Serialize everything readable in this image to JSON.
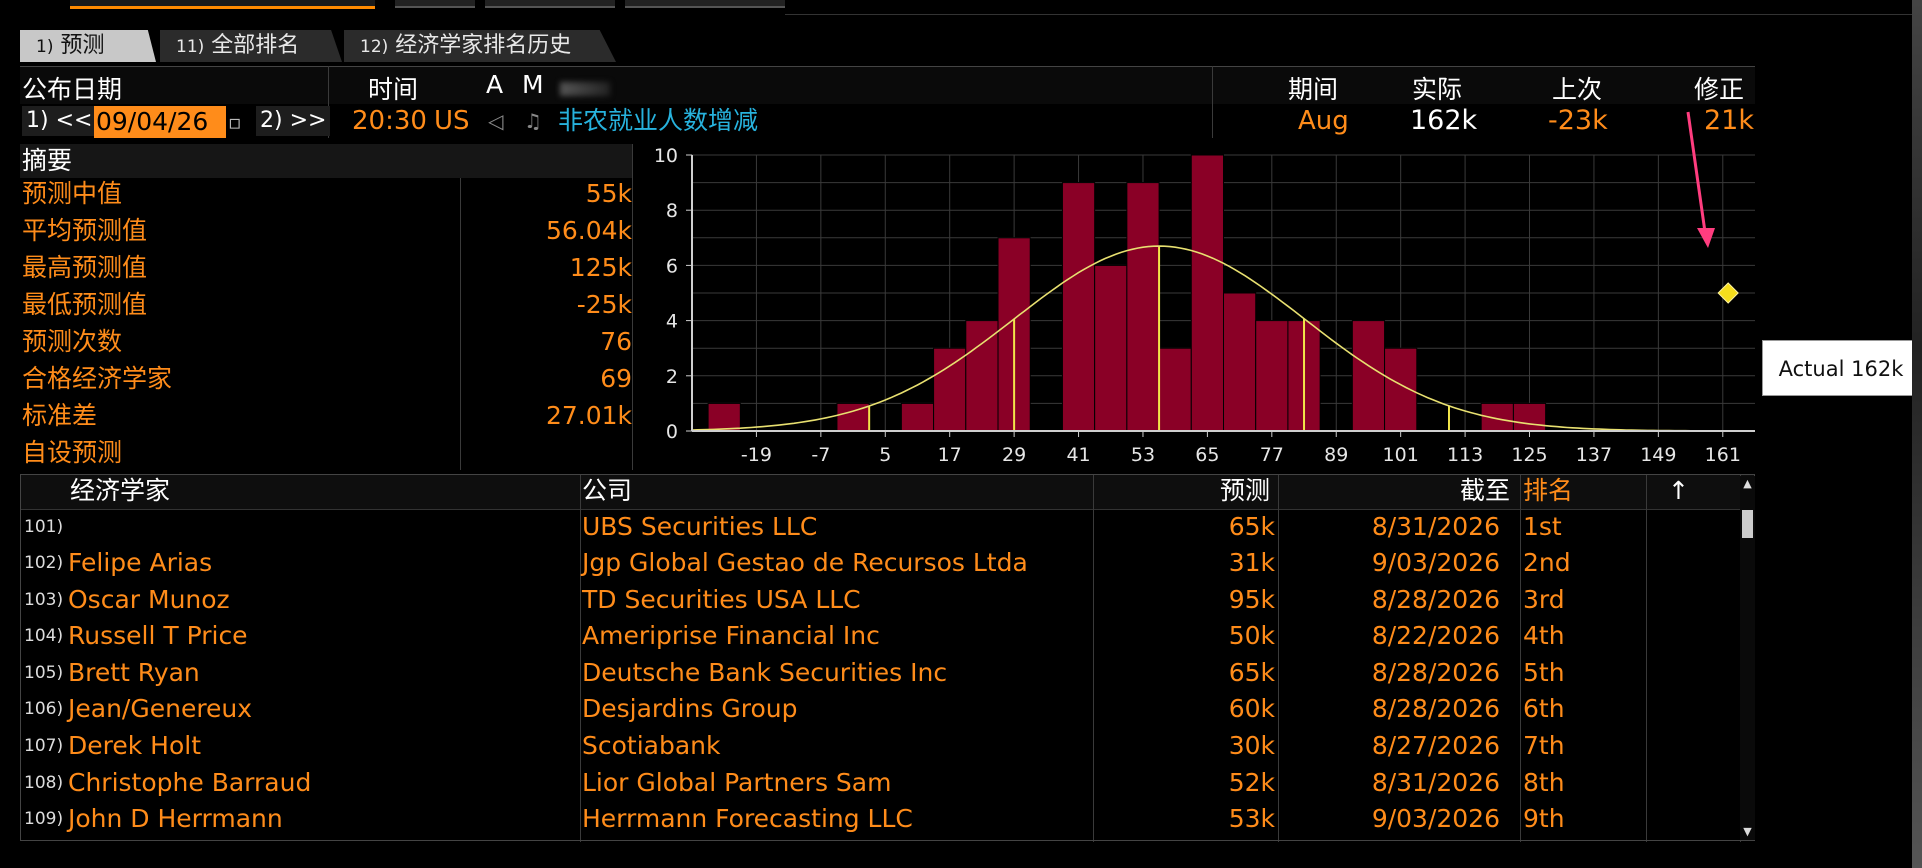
{
  "tabs": [
    {
      "num": "1)",
      "label": "预测",
      "active": true
    },
    {
      "num": "11)",
      "label": "全部排名",
      "active": false
    },
    {
      "num": "12)",
      "label": "经济学家排名历史",
      "active": false
    }
  ],
  "header": {
    "release_date_label": "公布日期",
    "time_label": "时间",
    "a_label": "A",
    "m_label": "M",
    "period_label": "期间",
    "actual_label": "实际",
    "prior_label": "上次",
    "revised_label": "修正"
  },
  "event": {
    "prev_btn": "1) <<",
    "date": "09/04/26",
    "next_btn": "2) >>",
    "time": "20:30",
    "country": "US",
    "title": "非农就业人数增减",
    "period": "Aug",
    "actual": "162k",
    "prior": "-23k",
    "revised": "21k"
  },
  "summary": {
    "title": "摘要",
    "rows": [
      {
        "label": "预测中值",
        "value": "55k"
      },
      {
        "label": "平均预测值",
        "value": "56.04k"
      },
      {
        "label": "最高预测值",
        "value": "125k"
      },
      {
        "label": "最低预测值",
        "value": "-25k"
      },
      {
        "label": "预测次数",
        "value": "76"
      },
      {
        "label": "合格经济学家",
        "value": "69"
      },
      {
        "label": "标准差",
        "value": "27.01k"
      },
      {
        "label": "自设预测",
        "value": ""
      }
    ]
  },
  "chart_data": {
    "type": "bar",
    "x_ticks": [
      "-19",
      "-7",
      "5",
      "17",
      "29",
      "41",
      "53",
      "65",
      "77",
      "89",
      "101",
      "113",
      "125",
      "137",
      "149",
      "161"
    ],
    "y_ticks": [
      "0",
      "2",
      "4",
      "6",
      "8",
      "10"
    ],
    "ylim": [
      0,
      10
    ],
    "xlim": [
      -31,
      167
    ],
    "bin_width": 6,
    "bins": [
      {
        "x": -25,
        "count": 1
      },
      {
        "x": -1,
        "count": 1
      },
      {
        "x": 11,
        "count": 1
      },
      {
        "x": 17,
        "count": 3
      },
      {
        "x": 23,
        "count": 4
      },
      {
        "x": 29,
        "count": 7
      },
      {
        "x": 41,
        "count": 9
      },
      {
        "x": 47,
        "count": 6
      },
      {
        "x": 53,
        "count": 9
      },
      {
        "x": 59,
        "count": 3
      },
      {
        "x": 65,
        "count": 10
      },
      {
        "x": 71,
        "count": 5
      },
      {
        "x": 77,
        "count": 4
      },
      {
        "x": 83,
        "count": 4
      },
      {
        "x": 95,
        "count": 4
      },
      {
        "x": 101,
        "count": 3
      },
      {
        "x": 119,
        "count": 1
      },
      {
        "x": 125,
        "count": 1
      }
    ],
    "normal_curve": {
      "mean": 56.04,
      "std": 27.01,
      "peak": 6.7
    },
    "markers": [
      2,
      29,
      56,
      83,
      110
    ],
    "actual_point": {
      "x": 162,
      "y": 5
    },
    "tooltip": "Actual 162k",
    "grid": true
  },
  "table": {
    "headers": {
      "economist": "经济学家",
      "company": "公司",
      "forecast": "预测",
      "as_of": "截至",
      "rank": "排名",
      "sort_arrow": "↑"
    },
    "rows": [
      {
        "idx": "101)",
        "name": "",
        "company": "UBS Securities LLC",
        "forecast": "65k",
        "date": "8/31/2026",
        "rank": "1st"
      },
      {
        "idx": "102)",
        "name": "Felipe Arias",
        "company": "Jgp Global Gestao de Recursos Ltda",
        "forecast": "31k",
        "date": "9/03/2026",
        "rank": "2nd"
      },
      {
        "idx": "103)",
        "name": "Oscar Munoz",
        "company": "TD Securities USA LLC",
        "forecast": "95k",
        "date": "8/28/2026",
        "rank": "3rd"
      },
      {
        "idx": "104)",
        "name": "Russell T Price",
        "company": "Ameriprise Financial Inc",
        "forecast": "50k",
        "date": "8/22/2026",
        "rank": "4th"
      },
      {
        "idx": "105)",
        "name": "Brett Ryan",
        "company": "Deutsche Bank Securities Inc",
        "forecast": "65k",
        "date": "8/28/2026",
        "rank": "5th"
      },
      {
        "idx": "106)",
        "name": "Jean/Genereux",
        "company": "Desjardins Group",
        "forecast": "60k",
        "date": "8/28/2026",
        "rank": "6th"
      },
      {
        "idx": "107)",
        "name": "Derek Holt",
        "company": "Scotiabank",
        "forecast": "30k",
        "date": "8/27/2026",
        "rank": "7th"
      },
      {
        "idx": "108)",
        "name": "Christophe Barraud",
        "company": "Lior Global Partners Sam",
        "forecast": "52k",
        "date": "8/31/2026",
        "rank": "8th"
      },
      {
        "idx": "109)",
        "name": "John D Herrmann",
        "company": "Herrmann Forecasting LLC",
        "forecast": "53k",
        "date": "9/03/2026",
        "rank": "9th"
      }
    ]
  },
  "colors": {
    "bar": "#8a0026",
    "curve": "#e8e070",
    "marker": "#f2e64a",
    "diamond": "#f5dd1c",
    "annotation_arrow": "#ff3d7f",
    "accent": "#ff8c1a"
  }
}
